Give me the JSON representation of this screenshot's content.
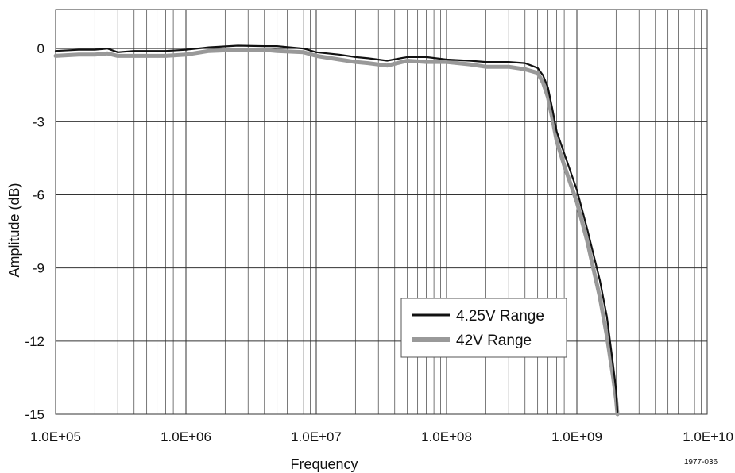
{
  "chart_data": {
    "type": "line",
    "title": "",
    "xlabel": "Frequency",
    "ylabel": "Amplitude (dB)",
    "x_scale": "log",
    "xlim": [
      100000,
      10000000000
    ],
    "ylim": [
      -15,
      1.6
    ],
    "grid": true,
    "x_ticks": [
      {
        "value": 100000,
        "label": "1.0E+05"
      },
      {
        "value": 1000000,
        "label": "1.0E+06"
      },
      {
        "value": 10000000,
        "label": "1.0E+07"
      },
      {
        "value": 100000000,
        "label": "1.0E+08"
      },
      {
        "value": 1000000000,
        "label": "1.0E+09"
      },
      {
        "value": 10000000000,
        "label": "1.0E+10"
      }
    ],
    "y_ticks": [
      {
        "value": 0,
        "label": "0"
      },
      {
        "value": -3,
        "label": "-3"
      },
      {
        "value": -6,
        "label": "-6"
      },
      {
        "value": -9,
        "label": "-9"
      },
      {
        "value": -12,
        "label": "-12"
      },
      {
        "value": -15,
        "label": "-15"
      }
    ],
    "legend_position": "lower-right",
    "series": [
      {
        "name": "4.25V Range",
        "color": "#111111",
        "x": [
          100000,
          150000,
          200000,
          250000,
          300000,
          400000,
          700000,
          1000000,
          1500000,
          2500000,
          4000000,
          5000000,
          8000000,
          10000000,
          15000000,
          20000000,
          25000000,
          35000000,
          50000000,
          70000000,
          100000000,
          150000000,
          200000000,
          300000000,
          400000000,
          500000000,
          550000000,
          600000000,
          650000000,
          700000000,
          800000000,
          1000000000,
          1200000000,
          1500000000,
          1700000000,
          1900000000,
          2000000000,
          2050000000
        ],
        "y": [
          -0.1,
          -0.05,
          -0.05,
          0.0,
          -0.15,
          -0.1,
          -0.1,
          -0.05,
          0.05,
          0.12,
          0.1,
          0.1,
          0.0,
          -0.15,
          -0.25,
          -0.35,
          -0.4,
          -0.5,
          -0.35,
          -0.35,
          -0.45,
          -0.5,
          -0.55,
          -0.55,
          -0.6,
          -0.8,
          -1.1,
          -1.6,
          -2.5,
          -3.4,
          -4.3,
          -5.8,
          -7.4,
          -9.5,
          -11.0,
          -13.0,
          -14.0,
          -14.9
        ]
      },
      {
        "name": "42V Range",
        "color": "#999999",
        "x": [
          100000,
          150000,
          200000,
          250000,
          300000,
          400000,
          700000,
          1000000,
          1500000,
          2500000,
          4000000,
          5000000,
          8000000,
          10000000,
          15000000,
          20000000,
          25000000,
          35000000,
          50000000,
          70000000,
          100000000,
          150000000,
          200000000,
          300000000,
          400000000,
          500000000,
          550000000,
          600000000,
          650000000,
          700000000,
          800000000,
          1000000000,
          1200000000,
          1500000000,
          1700000000,
          1900000000,
          2000000000,
          2050000000
        ],
        "y": [
          -0.3,
          -0.25,
          -0.25,
          -0.2,
          -0.3,
          -0.3,
          -0.3,
          -0.25,
          -0.1,
          -0.05,
          -0.05,
          -0.1,
          -0.15,
          -0.3,
          -0.45,
          -0.55,
          -0.6,
          -0.7,
          -0.5,
          -0.55,
          -0.55,
          -0.65,
          -0.75,
          -0.75,
          -0.85,
          -1.0,
          -1.4,
          -2.0,
          -2.9,
          -3.8,
          -4.8,
          -6.3,
          -7.9,
          -10.2,
          -11.8,
          -13.5,
          -14.4,
          -15.0
        ]
      }
    ]
  },
  "figure_id": "1977-036"
}
